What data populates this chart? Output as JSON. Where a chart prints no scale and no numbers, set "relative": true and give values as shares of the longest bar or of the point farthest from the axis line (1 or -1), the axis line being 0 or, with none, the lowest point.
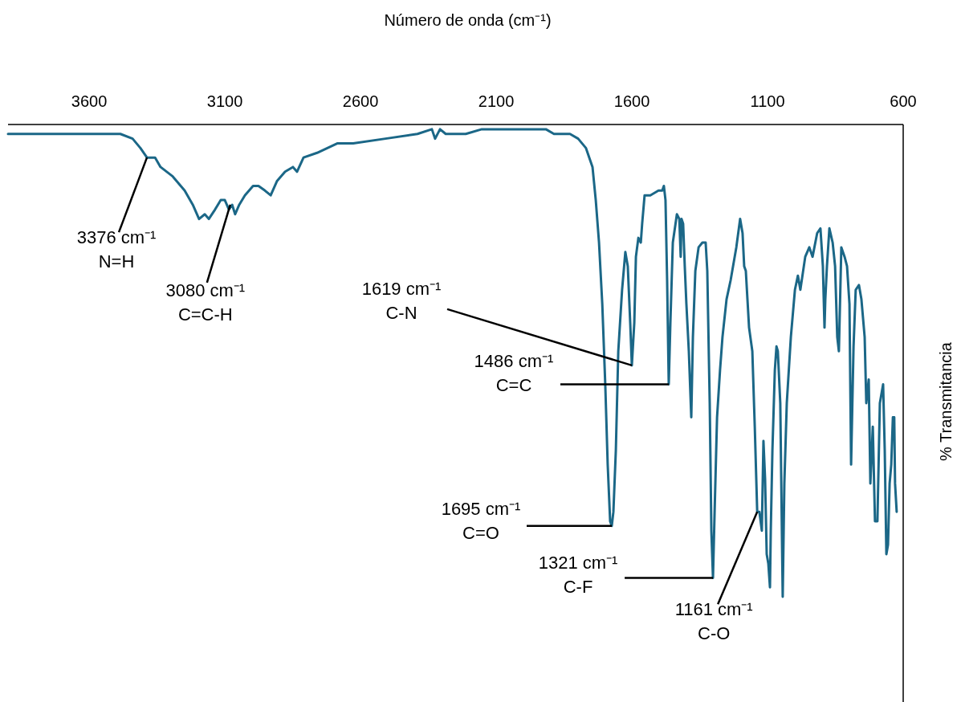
{
  "chart_data": {
    "type": "line",
    "xlabel": "Número de onda (cm⁻¹)",
    "ylabel": "% Transmitancia",
    "relative": true,
    "xlim": [
      3899,
      600
    ],
    "xticks": [
      3600,
      3100,
      2600,
      2100,
      1600,
      1100,
      600
    ],
    "grid": false,
    "marker": "none",
    "line_style": "solid",
    "series": [
      {
        "color": "#1b6787",
        "x": [
          3899,
          3780,
          3633,
          3485,
          3440,
          3411,
          3387,
          3372,
          3357,
          3337,
          3292,
          3248,
          3218,
          3195,
          3174,
          3159,
          3136,
          3115,
          3100,
          3085,
          3073,
          3062,
          3047,
          3026,
          2996,
          2976,
          2952,
          2931,
          2908,
          2878,
          2849,
          2834,
          2810,
          2760,
          2686,
          2627,
          2508,
          2390,
          2337,
          2325,
          2307,
          2286,
          2212,
          2153,
          2094,
          1976,
          1917,
          1887,
          1857,
          1828,
          1798,
          1769,
          1745,
          1733,
          1721,
          1709,
          1698,
          1689,
          1680,
          1674,
          1668,
          1659,
          1650,
          1636,
          1624,
          1615,
          1606,
          1600,
          1591,
          1585,
          1576,
          1567,
          1562,
          1553,
          1532,
          1502,
          1488,
          1482,
          1476,
          1470,
          1464,
          1458,
          1449,
          1434,
          1425,
          1420,
          1417,
          1411,
          1405,
          1399,
          1390,
          1381,
          1375,
          1366,
          1354,
          1340,
          1328,
          1322,
          1313,
          1307,
          1301,
          1295,
          1286,
          1275,
          1266,
          1251,
          1236,
          1215,
          1201,
          1192,
          1186,
          1180,
          1174,
          1168,
          1156,
          1147,
          1138,
          1130,
          1121,
          1115,
          1109,
          1103,
          1097,
          1091,
          1088,
          1082,
          1073,
          1067,
          1062,
          1053,
          1044,
          1038,
          1029,
          1014,
          999,
          988,
          979,
          961,
          946,
          934,
          917,
          905,
          896,
          890,
          887,
          881,
          872,
          860,
          851,
          843,
          837,
          828,
          816,
          807,
          798,
          792,
          783,
          775,
          763,
          754,
          742,
          736,
          727,
          721,
          712,
          704,
          701,
          695,
          686,
          674,
          668,
          662,
          656,
          650,
          644,
          638,
          633,
          630,
          624
        ],
        "values": [
          -0.02,
          -0.02,
          -0.02,
          -0.02,
          -0.03,
          -0.05,
          -0.07,
          -0.07,
          -0.07,
          -0.09,
          -0.11,
          -0.14,
          -0.17,
          -0.2,
          -0.19,
          -0.2,
          -0.18,
          -0.16,
          -0.16,
          -0.18,
          -0.17,
          -0.19,
          -0.17,
          -0.15,
          -0.13,
          -0.13,
          -0.14,
          -0.15,
          -0.12,
          -0.1,
          -0.09,
          -0.1,
          -0.07,
          -0.06,
          -0.04,
          -0.04,
          -0.03,
          -0.02,
          -0.01,
          -0.03,
          -0.01,
          -0.02,
          -0.02,
          -0.01,
          -0.01,
          -0.01,
          -0.01,
          -0.02,
          -0.02,
          -0.02,
          -0.03,
          -0.05,
          -0.09,
          -0.16,
          -0.25,
          -0.38,
          -0.55,
          -0.72,
          -0.84,
          -0.85,
          -0.82,
          -0.69,
          -0.48,
          -0.35,
          -0.27,
          -0.3,
          -0.42,
          -0.51,
          -0.42,
          -0.28,
          -0.24,
          -0.25,
          -0.21,
          -0.15,
          -0.15,
          -0.14,
          -0.14,
          -0.13,
          -0.16,
          -0.33,
          -0.55,
          -0.42,
          -0.25,
          -0.19,
          -0.2,
          -0.28,
          -0.2,
          -0.21,
          -0.3,
          -0.38,
          -0.48,
          -0.62,
          -0.45,
          -0.31,
          -0.26,
          -0.25,
          -0.25,
          -0.31,
          -0.59,
          -0.86,
          -0.96,
          -0.82,
          -0.62,
          -0.52,
          -0.45,
          -0.37,
          -0.33,
          -0.26,
          -0.2,
          -0.23,
          -0.3,
          -0.31,
          -0.37,
          -0.43,
          -0.48,
          -0.64,
          -0.82,
          -0.82,
          -0.86,
          -0.67,
          -0.75,
          -0.91,
          -0.93,
          -0.98,
          -0.86,
          -0.69,
          -0.52,
          -0.47,
          -0.48,
          -0.59,
          -1.0,
          -0.76,
          -0.59,
          -0.45,
          -0.35,
          -0.32,
          -0.35,
          -0.28,
          -0.26,
          -0.28,
          -0.23,
          -0.22,
          -0.3,
          -0.43,
          -0.37,
          -0.3,
          -0.22,
          -0.25,
          -0.3,
          -0.45,
          -0.48,
          -0.26,
          -0.28,
          -0.3,
          -0.38,
          -0.72,
          -0.47,
          -0.35,
          -0.34,
          -0.37,
          -0.45,
          -0.59,
          -0.54,
          -0.76,
          -0.64,
          -0.84,
          -0.84,
          -0.84,
          -0.59,
          -0.55,
          -0.69,
          -0.91,
          -0.89,
          -0.76,
          -0.72,
          -0.62,
          -0.62,
          -0.76,
          -0.82
        ]
      }
    ],
    "annotations": [
      {
        "text": "3376 cm⁻¹\nN=H",
        "x": 3387,
        "y": -0.07
      },
      {
        "text": "3080 cm⁻¹\nC=C-H",
        "x": 3080,
        "y": -0.17
      },
      {
        "text": "1619 cm⁻¹\nC-N",
        "x": 1600,
        "y": -0.51
      },
      {
        "text": "1486 cm⁻¹\nC=C",
        "x": 1464,
        "y": -0.55
      },
      {
        "text": "1695 cm⁻¹\nC=O",
        "x": 1674,
        "y": -0.85
      },
      {
        "text": "1321 cm⁻¹\nC-F",
        "x": 1301,
        "y": -0.96
      },
      {
        "text": "1161 cm⁻¹\nC-O",
        "x": 1138,
        "y": -0.82
      }
    ]
  }
}
